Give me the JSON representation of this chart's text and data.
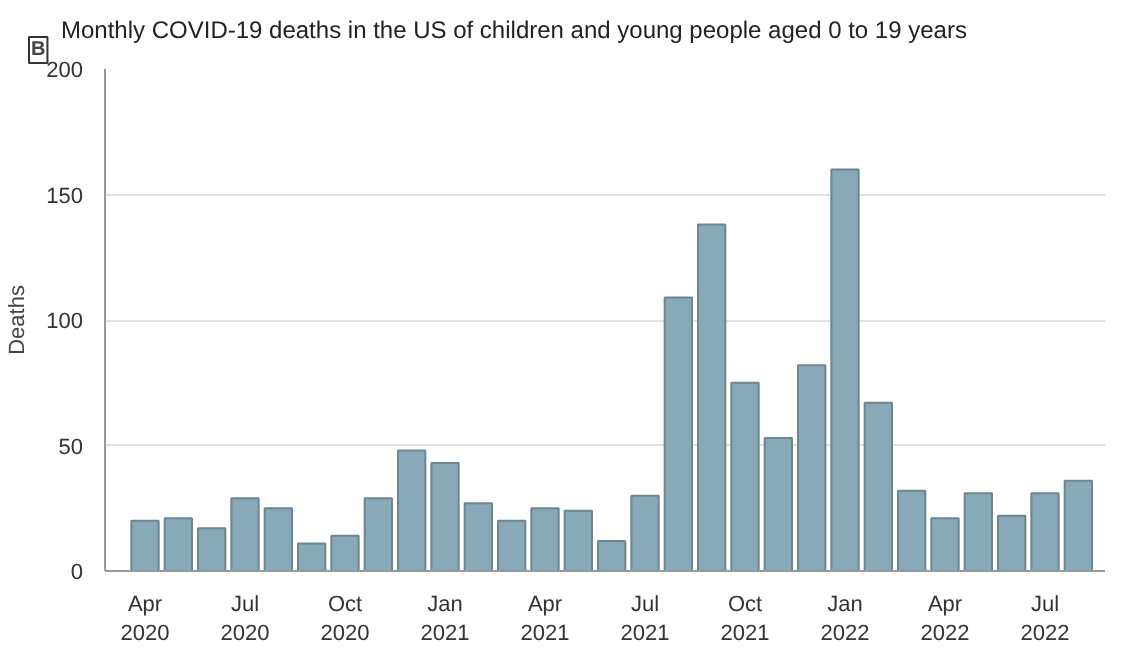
{
  "chart_data": {
    "type": "bar",
    "title": "Monthly COVID-19 deaths in the US of children and young people aged 0 to 19 years",
    "annotations": [
      "B"
    ],
    "ylabel": "Deaths",
    "categories": [
      "Apr\n2020",
      null,
      null,
      "Jul\n2020",
      null,
      null,
      "Oct\n2020",
      null,
      null,
      "Jan\n2021",
      null,
      null,
      "Apr\n2021",
      null,
      null,
      "Jul\n2021",
      null,
      null,
      "Oct\n2021",
      null,
      null,
      "Jan\n2022",
      null,
      null,
      "Apr\n2022",
      null,
      null,
      "Jul\n2022",
      null
    ],
    "values": [
      20,
      21,
      17,
      29,
      25,
      11,
      14,
      29,
      48,
      43,
      27,
      20,
      25,
      24,
      12,
      30,
      109,
      138,
      75,
      53,
      82,
      160,
      67,
      32,
      21,
      31,
      22,
      31,
      36
    ],
    "color": "#87a9b8",
    "ylim": [
      0,
      200
    ],
    "yticks": [
      0,
      50,
      100,
      150,
      200
    ],
    "grid": "y"
  }
}
